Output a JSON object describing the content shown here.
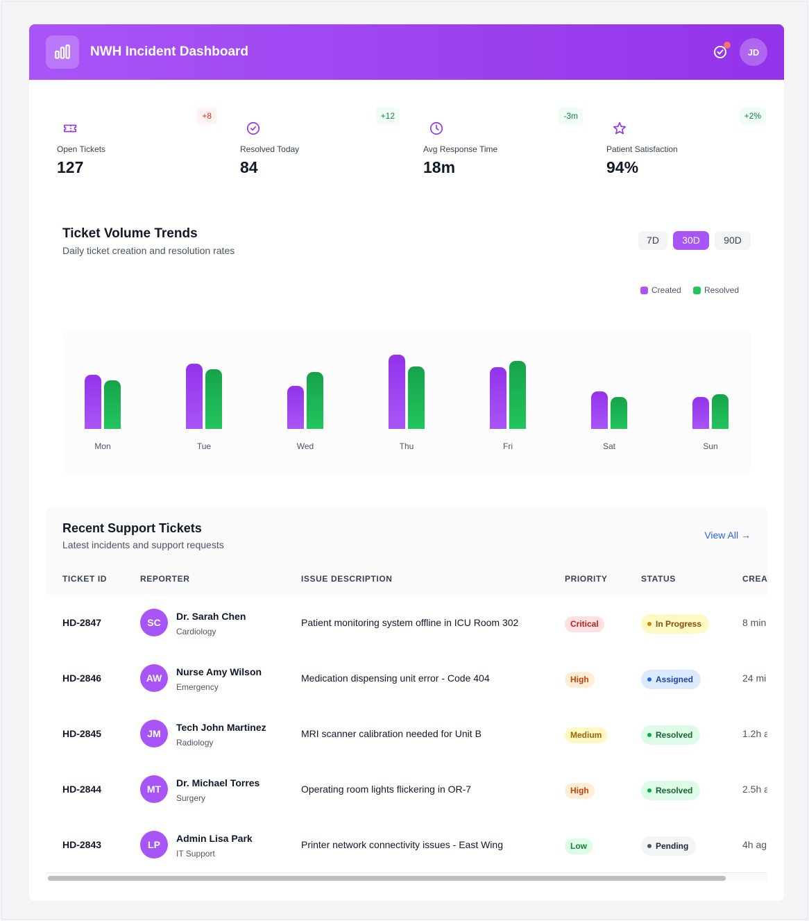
{
  "header": {
    "title": "NWH Incident Dashboard",
    "user_initials": "JD"
  },
  "stats": [
    {
      "label": "Open Tickets",
      "value": "127",
      "change": "+8",
      "tone": "red",
      "icon": "ticket-icon"
    },
    {
      "label": "Resolved Today",
      "value": "84",
      "change": "+12",
      "tone": "green",
      "icon": "check-circle-icon"
    },
    {
      "label": "Avg Response Time",
      "value": "18m",
      "change": "-3m",
      "tone": "green",
      "icon": "clock-icon"
    },
    {
      "label": "Patient Satisfaction",
      "value": "94%",
      "change": "+2%",
      "tone": "green",
      "icon": "star-icon"
    }
  ],
  "trends": {
    "title": "Ticket Volume Trends",
    "subtitle": "Daily ticket creation and resolution rates",
    "ranges": [
      "7D",
      "30D",
      "90D"
    ],
    "active_range": "30D"
  },
  "chart_data": {
    "type": "bar",
    "categories": [
      "Mon",
      "Tue",
      "Wed",
      "Thu",
      "Fri",
      "Sat",
      "Sun"
    ],
    "series": [
      {
        "name": "Created",
        "color": "#a855f7",
        "values": [
          78,
          94,
          62,
          107,
          89,
          54,
          46
        ]
      },
      {
        "name": "Resolved",
        "color": "#22c55e",
        "values": [
          70,
          86,
          82,
          90,
          98,
          46,
          50
        ]
      }
    ],
    "legend": "top-right",
    "grid": false
  },
  "tickets": {
    "title": "Recent Support Tickets",
    "subtitle": "Latest incidents and support requests",
    "view_all": "View All →",
    "columns": [
      "TICKET ID",
      "REPORTER",
      "ISSUE DESCRIPTION",
      "PRIORITY",
      "STATUS",
      "CREAT"
    ],
    "rows": [
      {
        "id": "HD-2847",
        "initials": "SC",
        "name": "Dr. Sarah Chen",
        "dept": "Cardiology",
        "issue": "Patient monitoring system offline in ICU Room 302",
        "priority": "Critical",
        "status": "In Progress",
        "created": "8 min"
      },
      {
        "id": "HD-2846",
        "initials": "AW",
        "name": "Nurse Amy Wilson",
        "dept": "Emergency",
        "issue": "Medication dispensing unit error - Code 404",
        "priority": "High",
        "status": "Assigned",
        "created": "24 mi"
      },
      {
        "id": "HD-2845",
        "initials": "JM",
        "name": "Tech John Martinez",
        "dept": "Radiology",
        "issue": "MRI scanner calibration needed for Unit B",
        "priority": "Medium",
        "status": "Resolved",
        "created": "1.2h a"
      },
      {
        "id": "HD-2844",
        "initials": "MT",
        "name": "Dr. Michael Torres",
        "dept": "Surgery",
        "issue": "Operating room lights flickering in OR-7",
        "priority": "High",
        "status": "Resolved",
        "created": "2.5h a"
      },
      {
        "id": "HD-2843",
        "initials": "LP",
        "name": "Admin Lisa Park",
        "dept": "IT Support",
        "issue": "Printer network connectivity issues - East Wing",
        "priority": "Low",
        "status": "Pending",
        "created": "4h ag"
      }
    ]
  }
}
